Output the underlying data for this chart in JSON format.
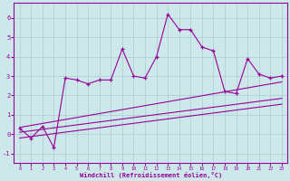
{
  "xlabel": "Windchill (Refroidissement éolien,°C)",
  "x_values": [
    0,
    1,
    2,
    3,
    4,
    5,
    6,
    7,
    8,
    9,
    10,
    11,
    12,
    13,
    14,
    15,
    16,
    17,
    18,
    19,
    20,
    21,
    22,
    23
  ],
  "main_line": [
    0.3,
    -0.2,
    0.4,
    -0.7,
    2.9,
    2.8,
    2.6,
    2.8,
    2.8,
    4.4,
    3.0,
    2.9,
    4.0,
    6.2,
    5.4,
    5.4,
    4.5,
    4.3,
    2.2,
    2.1,
    3.9,
    3.1,
    2.9,
    3.0
  ],
  "line1_x": [
    0,
    23
  ],
  "line1_y": [
    0.35,
    2.7
  ],
  "line2_x": [
    0,
    23
  ],
  "line2_y": [
    0.1,
    1.85
  ],
  "line3_x": [
    0,
    23
  ],
  "line3_y": [
    -0.2,
    1.55
  ],
  "line_color": "#990099",
  "bg_color": "#cce8ea",
  "grid_color": "#aacccc",
  "ylim": [
    -1.5,
    6.8
  ],
  "xlim": [
    -0.5,
    23.5
  ],
  "yticks": [
    -1,
    0,
    1,
    2,
    3,
    4,
    5,
    6
  ],
  "xticks": [
    0,
    1,
    2,
    3,
    4,
    5,
    6,
    7,
    8,
    9,
    10,
    11,
    12,
    13,
    14,
    15,
    16,
    17,
    18,
    19,
    20,
    21,
    22,
    23
  ]
}
